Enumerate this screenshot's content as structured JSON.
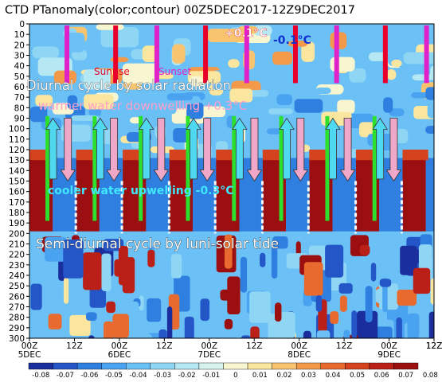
{
  "chart_data": {
    "type": "heatmap",
    "title": "CTD PTanomaly(color;contour) 00Z5DEC2017-12Z9DEC2017",
    "x_ticks": [
      {
        "top": "00Z",
        "bottom": "5DEC"
      },
      {
        "top": "12Z",
        "bottom": ""
      },
      {
        "top": "00Z",
        "bottom": "6DEC"
      },
      {
        "top": "12Z",
        "bottom": ""
      },
      {
        "top": "00Z",
        "bottom": "7DEC"
      },
      {
        "top": "12Z",
        "bottom": ""
      },
      {
        "top": "00Z",
        "bottom": "8DEC"
      },
      {
        "top": "12Z",
        "bottom": ""
      },
      {
        "top": "00Z",
        "bottom": "9DEC"
      },
      {
        "top": "12Z",
        "bottom": ""
      }
    ],
    "y_ticks": [
      "0",
      "10",
      "20",
      "30",
      "40",
      "50",
      "60",
      "70",
      "80",
      "90",
      "100",
      "110",
      "120",
      "130",
      "140",
      "150",
      "160",
      "170",
      "180",
      "190",
      "200",
      "210",
      "220",
      "230",
      "240",
      "250",
      "260",
      "270",
      "280",
      "290",
      "300"
    ],
    "ylim": [
      300,
      0
    ],
    "xlim_hours": [
      0,
      108
    ],
    "colorbar": {
      "levels": [
        "-0.08",
        "-0.07",
        "-0.06",
        "-0.05",
        "-0.04",
        "-0.03",
        "-0.02",
        "-0.01",
        "0",
        "0.01",
        "0.02",
        "0.03",
        "0.04",
        "0.05",
        "0.06",
        "0.07",
        "0.08"
      ],
      "colors": [
        "#1a2e9e",
        "#2456c8",
        "#2f7fe0",
        "#4aa3f0",
        "#6bc0f5",
        "#8fd6f5",
        "#b5e8f2",
        "#d7f3ee",
        "#f8f6d0",
        "#fbe6a0",
        "#f8c470",
        "#f29a4a",
        "#e86a2e",
        "#d5421e",
        "#bb2018",
        "#9b0f10"
      ]
    },
    "sunrise_hours": [
      -1,
      23,
      47,
      71,
      95
    ],
    "sunset_hours": [
      10,
      34,
      58,
      82,
      106
    ],
    "annotations": [
      "Sunrise",
      "Sunset",
      "+0.1°C",
      "-0.1°C",
      "Diurnal cycle by solar radiation",
      "warmer water downwelling +0.3°C",
      "cooler water upwelling -0.3°C",
      "Semi-diurnal cycle by luni-solar tide"
    ],
    "up_arrow_hours": [
      4.8,
      17.4,
      29.7,
      42.3,
      54.6,
      67.2,
      79.5,
      92.1
    ],
    "down_arrow_hours": [
      11.1,
      23.4,
      36,
      48.3,
      60.9,
      73.2,
      85.8,
      98.1
    ]
  }
}
